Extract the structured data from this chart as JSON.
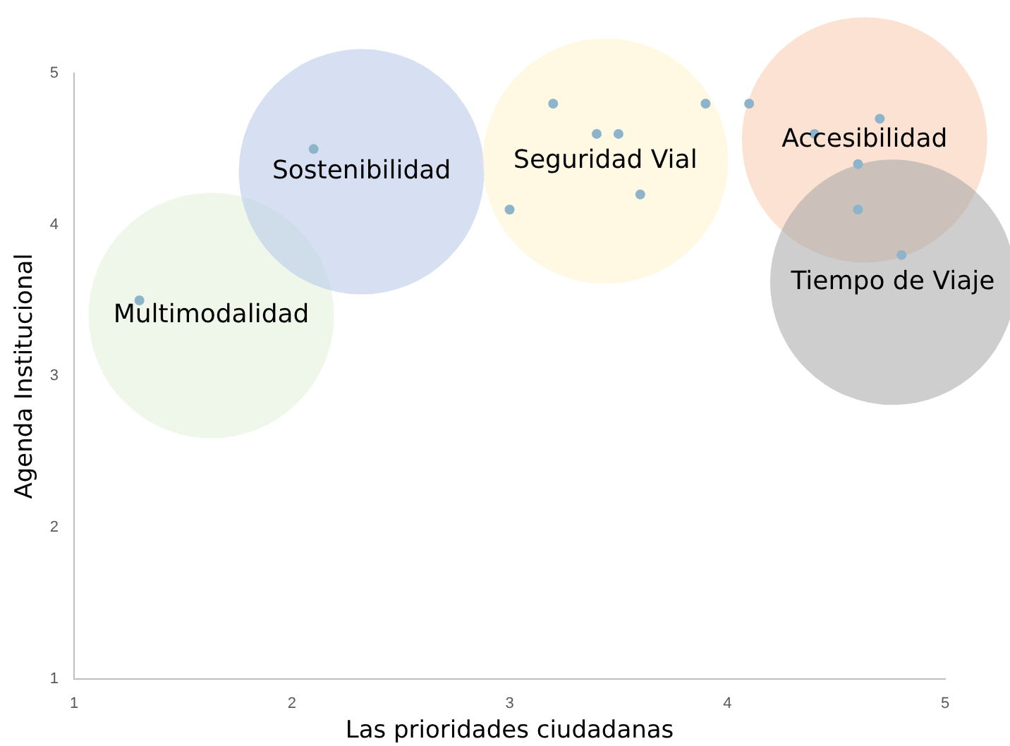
{
  "chart_data": {
    "type": "scatter",
    "xlabel": "Las prioridades ciudadanas",
    "ylabel": "Agenda Institucional",
    "xlim": [
      1,
      5
    ],
    "ylim": [
      1,
      5
    ],
    "xticks": [
      1,
      2,
      3,
      4,
      5
    ],
    "yticks": [
      1,
      2,
      3,
      4,
      5
    ],
    "grid": false,
    "legend": false,
    "marker": "circle",
    "series": [
      {
        "type": "bubble",
        "name": "Multimodalidad",
        "color": "#e2f0d9",
        "x": [
          1.63
        ],
        "values": [
          3.4
        ],
        "sizes": [
          1
        ]
      },
      {
        "type": "bubble",
        "name": "Sostenibilidad",
        "color": "#b4c7e7",
        "x": [
          2.32
        ],
        "values": [
          4.35
        ],
        "sizes": [
          1
        ]
      },
      {
        "type": "bubble",
        "name": "Seguridad Vial",
        "color": "#fff2cc",
        "x": [
          3.44
        ],
        "values": [
          4.42
        ],
        "sizes": [
          1
        ]
      },
      {
        "type": "bubble",
        "name": "Accesibilidad",
        "color": "#f8cbad",
        "x": [
          4.63
        ],
        "values": [
          4.56
        ],
        "sizes": [
          1
        ]
      },
      {
        "type": "bubble",
        "name": "Tiempo de Viaje",
        "color": "#a6a6a6",
        "x": [
          4.76
        ],
        "values": [
          3.62
        ],
        "sizes": [
          1
        ]
      },
      {
        "type": "scatter",
        "color": "#8eb4cc",
        "x": [
          1.3,
          2.1,
          3.0,
          3.2,
          3.4,
          3.5,
          3.6,
          3.9,
          4.1,
          4.4,
          4.7,
          4.6,
          4.6,
          4.8
        ],
        "values": [
          3.5,
          4.5,
          4.1,
          4.8,
          4.6,
          4.6,
          4.2,
          4.8,
          4.8,
          4.6,
          4.7,
          4.4,
          4.1,
          3.8
        ]
      }
    ]
  }
}
